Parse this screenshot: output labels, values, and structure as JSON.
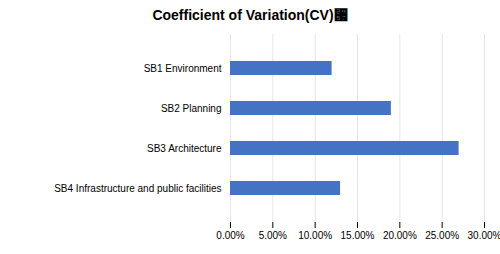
{
  "chart_data": {
    "type": "bar",
    "orientation": "horizontal",
    "title": "Coefficient of Variation(CV)⑗",
    "categories": [
      "SB4 Infrastructure and public facilities",
      "SB3 Architecture",
      "SB2 Planning",
      "SB1 Environment"
    ],
    "values": [
      0.13,
      0.27,
      0.19,
      0.12
    ],
    "color": "#4472C4",
    "xlim": [
      0,
      0.3
    ],
    "xticks": [
      {
        "value": 0.0,
        "label": "0.00%"
      },
      {
        "value": 0.05,
        "label": "5.00%"
      },
      {
        "value": 0.1,
        "label": "10.00%"
      },
      {
        "value": 0.15,
        "label": "15.00%"
      },
      {
        "value": 0.2,
        "label": "20.00%"
      },
      {
        "value": 0.25,
        "label": "25.00%"
      },
      {
        "value": 0.3,
        "label": "30.00%"
      }
    ],
    "grid": true
  }
}
